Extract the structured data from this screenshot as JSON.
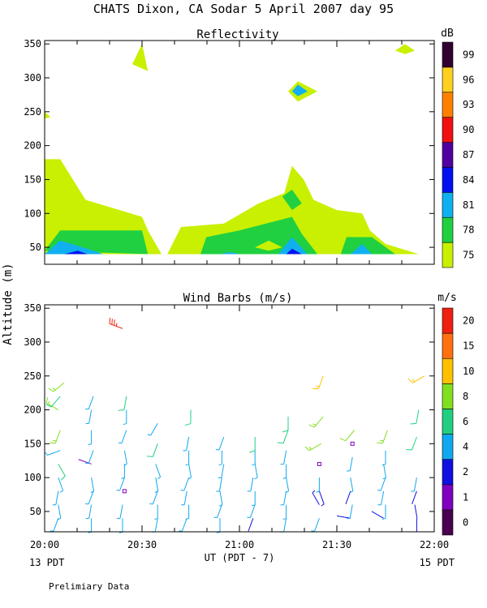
{
  "figure": {
    "title": "CHATS Dixon, CA  Sodar   5 April 2007  day  95",
    "ylabel": "Altitude (m)",
    "xlabel": "UT  (PDT - 7)",
    "left_note": "13 PDT",
    "right_note": "15 PDT",
    "footer": "Prelimiary Data"
  },
  "chart_data": [
    {
      "type": "heatmap",
      "title": "Reflectivity",
      "ylim": [
        25,
        355
      ],
      "yticks": [
        50,
        100,
        150,
        200,
        250,
        300,
        350
      ],
      "xlim_hours": [
        20,
        22
      ],
      "colorbar": {
        "unit": "dB",
        "levels": [
          75,
          78,
          81,
          84,
          87,
          90,
          93,
          96,
          99
        ],
        "colors": [
          "#c8f000",
          "#20d040",
          "#10b0f0",
          "#0010f0",
          "#5000a0",
          "#f01010",
          "#ff8000",
          "#ffd020",
          "#300030"
        ]
      },
      "contours": [
        {
          "level": 75,
          "color": "#c8f000",
          "points": [
            [
              20.0,
              40
            ],
            [
              20.0,
              180
            ],
            [
              20.08,
              180
            ],
            [
              20.21,
              120
            ],
            [
              20.5,
              95
            ],
            [
              20.53,
              75
            ],
            [
              20.6,
              40
            ]
          ]
        },
        {
          "level": 75,
          "color": "#c8f000",
          "points": [
            [
              20.25,
              40
            ],
            [
              20.33,
              50
            ],
            [
              20.5,
              40
            ]
          ]
        },
        {
          "level": 75,
          "color": "#c8f000",
          "points": [
            [
              20.63,
              40
            ],
            [
              20.7,
              80
            ],
            [
              20.92,
              85
            ],
            [
              21.1,
              115
            ],
            [
              21.23,
              130
            ],
            [
              21.27,
              170
            ],
            [
              21.33,
              150
            ],
            [
              21.38,
              120
            ],
            [
              21.5,
              105
            ],
            [
              21.63,
              100
            ],
            [
              21.67,
              75
            ],
            [
              21.75,
              55
            ],
            [
              21.92,
              40
            ]
          ]
        },
        {
          "level": 75,
          "color": "#c8f000",
          "points": [
            [
              20.45,
              320
            ],
            [
              20.5,
              350
            ],
            [
              20.53,
              310
            ]
          ]
        },
        {
          "level": 75,
          "color": "#c8f000",
          "points": [
            [
              21.25,
              280
            ],
            [
              21.3,
              295
            ],
            [
              21.4,
              280
            ],
            [
              21.3,
              265
            ]
          ]
        },
        {
          "level": 75,
          "color": "#c8f000",
          "points": [
            [
              21.8,
              340
            ],
            [
              21.85,
              350
            ],
            [
              21.9,
              340
            ],
            [
              21.85,
              335
            ]
          ]
        },
        {
          "level": 75,
          "color": "#c8f000",
          "points": [
            [
              20.0,
              240
            ],
            [
              20.03,
              242
            ],
            [
              20.0,
              250
            ]
          ]
        },
        {
          "level": 78,
          "color": "#20d040",
          "points": [
            [
              20.0,
              45
            ],
            [
              20.08,
              75
            ],
            [
              20.5,
              75
            ],
            [
              20.53,
              40
            ]
          ]
        },
        {
          "level": 78,
          "color": "#20d040",
          "points": [
            [
              20.8,
              40
            ],
            [
              20.83,
              65
            ],
            [
              21.0,
              75
            ],
            [
              21.27,
              95
            ],
            [
              21.32,
              70
            ],
            [
              21.4,
              40
            ]
          ]
        },
        {
          "level": 78,
          "color": "#20d040",
          "points": [
            [
              21.22,
              125
            ],
            [
              21.27,
              135
            ],
            [
              21.32,
              115
            ],
            [
              21.27,
              105
            ]
          ]
        },
        {
          "level": 78,
          "color": "#20d040",
          "points": [
            [
              21.52,
              40
            ],
            [
              21.55,
              65
            ],
            [
              21.68,
              65
            ],
            [
              21.8,
              40
            ]
          ]
        },
        {
          "level": 75,
          "color": "#c8f000",
          "points": [
            [
              21.08,
              50
            ],
            [
              21.15,
              60
            ],
            [
              21.22,
              50
            ],
            [
              21.15,
              45
            ]
          ]
        },
        {
          "level": 81,
          "color": "#10b0f0",
          "points": [
            [
              20.0,
              40
            ],
            [
              20.08,
              60
            ],
            [
              20.25,
              45
            ],
            [
              20.3,
              40
            ]
          ]
        },
        {
          "level": 81,
          "color": "#10b0f0",
          "points": [
            [
              21.2,
              40
            ],
            [
              21.27,
              65
            ],
            [
              21.35,
              40
            ]
          ]
        },
        {
          "level": 81,
          "color": "#10b0f0",
          "points": [
            [
              21.57,
              40
            ],
            [
              21.63,
              55
            ],
            [
              21.68,
              40
            ]
          ]
        },
        {
          "level": 81,
          "color": "#10b0f0",
          "points": [
            [
              21.27,
              280
            ],
            [
              21.3,
              290
            ],
            [
              21.35,
              280
            ],
            [
              21.3,
              273
            ]
          ]
        },
        {
          "level": 81,
          "color": "#10b0f0",
          "points": [
            [
              20.9,
              40
            ],
            [
              20.95,
              43
            ],
            [
              21.0,
              40
            ]
          ]
        },
        {
          "level": 84,
          "color": "#0010f0",
          "points": [
            [
              20.1,
              40
            ],
            [
              20.17,
              45
            ],
            [
              20.22,
              40
            ]
          ]
        },
        {
          "level": 84,
          "color": "#0010f0",
          "points": [
            [
              21.24,
              40
            ],
            [
              21.27,
              48
            ],
            [
              21.32,
              40
            ]
          ]
        }
      ]
    },
    {
      "type": "scatter",
      "title": "Wind Barbs (m/s)",
      "ylim": [
        20,
        355
      ],
      "yticks": [
        50,
        100,
        150,
        200,
        250,
        300,
        350
      ],
      "xlim_hours": [
        20,
        22
      ],
      "xticks": [
        "20:00",
        "20:30",
        "21:00",
        "21:30",
        "22:00"
      ],
      "colorbar": {
        "unit": "m/s",
        "levels": [
          0,
          1,
          2,
          4,
          6,
          8,
          10,
          15,
          20
        ],
        "colors": [
          "#4a0050",
          "#8000c0",
          "#1010e0",
          "#10a8f0",
          "#20d080",
          "#80e020",
          "#ffc000",
          "#ff7010",
          "#f02010"
        ]
      },
      "barb_color_by_speed": [
        {
          "min": 0,
          "color": "#4a0050"
        },
        {
          "min": 1,
          "color": "#8000c0"
        },
        {
          "min": 2,
          "color": "#1010e0"
        },
        {
          "min": 3,
          "color": "#10a8f0"
        },
        {
          "min": 5,
          "color": "#20d080"
        },
        {
          "min": 7,
          "color": "#80e020"
        },
        {
          "min": 9,
          "color": "#ffc000"
        },
        {
          "min": 12,
          "color": "#ff7010"
        },
        {
          "min": 18,
          "color": "#f02010"
        }
      ],
      "barb_columns_hours": [
        20.08,
        20.25,
        20.42,
        20.58,
        20.75,
        20.92,
        21.08,
        21.25,
        21.42,
        21.58,
        21.75,
        21.92
      ],
      "barb_altitudes": [
        40,
        60,
        80,
        100,
        120,
        140,
        160,
        180,
        200,
        220,
        240
      ],
      "barbs": [
        [
          20.07,
          40,
          3.5,
          200
        ],
        [
          20.07,
          60,
          3.5,
          170
        ],
        [
          20.07,
          80,
          3.0,
          190
        ],
        [
          20.07,
          100,
          4.0,
          160
        ],
        [
          20.07,
          120,
          5.0,
          150
        ],
        [
          20.08,
          140,
          3.8,
          250
        ],
        [
          20.08,
          170,
          7.5,
          200
        ],
        [
          20.07,
          200,
          8.0,
          300
        ],
        [
          20.08,
          220,
          6.0,
          220
        ],
        [
          20.1,
          240,
          8.5,
          230
        ],
        [
          20.24,
          40,
          3.5,
          180
        ],
        [
          20.24,
          60,
          4.0,
          190
        ],
        [
          20.25,
          80,
          3.5,
          200
        ],
        [
          20.24,
          100,
          3.0,
          170
        ],
        [
          20.24,
          120,
          1.8,
          290
        ],
        [
          20.25,
          140,
          3.5,
          200
        ],
        [
          20.24,
          170,
          3.5,
          180
        ],
        [
          20.24,
          200,
          3.2,
          190
        ],
        [
          20.25,
          220,
          4.0,
          200
        ],
        [
          20.4,
          40,
          4.0,
          180
        ],
        [
          20.4,
          60,
          3.5,
          190
        ],
        [
          20.41,
          80,
          1.0,
          0
        ],
        [
          20.41,
          100,
          3.5,
          200
        ],
        [
          20.41,
          120,
          3.5,
          180
        ],
        [
          20.41,
          140,
          4.0,
          170
        ],
        [
          20.42,
          170,
          3.8,
          200
        ],
        [
          20.42,
          200,
          4.0,
          180
        ],
        [
          20.42,
          220,
          6.0,
          190
        ],
        [
          20.4,
          320,
          18.0,
          290
        ],
        [
          20.58,
          40,
          3.2,
          190
        ],
        [
          20.58,
          60,
          4.0,
          180
        ],
        [
          20.58,
          80,
          3.5,
          200
        ],
        [
          20.57,
          100,
          3.5,
          170
        ],
        [
          20.57,
          120,
          4.5,
          160
        ],
        [
          20.58,
          150,
          5.5,
          200
        ],
        [
          20.58,
          180,
          3.5,
          210
        ],
        [
          20.73,
          40,
          4.0,
          200
        ],
        [
          20.74,
          60,
          3.5,
          180
        ],
        [
          20.73,
          80,
          3.5,
          190
        ],
        [
          20.74,
          100,
          3.0,
          200
        ],
        [
          20.74,
          120,
          3.5,
          170
        ],
        [
          20.74,
          140,
          3.5,
          180
        ],
        [
          20.74,
          160,
          4.0,
          190
        ],
        [
          20.75,
          200,
          6.5,
          180
        ],
        [
          20.9,
          40,
          4.0,
          180
        ],
        [
          20.91,
          60,
          3.0,
          200
        ],
        [
          20.9,
          80,
          3.5,
          170
        ],
        [
          20.91,
          100,
          3.5,
          190
        ],
        [
          20.92,
          120,
          3.2,
          190
        ],
        [
          20.91,
          140,
          4.0,
          180
        ],
        [
          20.92,
          160,
          3.8,
          200
        ],
        [
          21.07,
          40,
          2.0,
          200
        ],
        [
          21.08,
          60,
          3.5,
          200
        ],
        [
          21.08,
          80,
          3.0,
          180
        ],
        [
          21.07,
          100,
          3.5,
          190
        ],
        [
          21.08,
          120,
          4.0,
          170
        ],
        [
          21.08,
          140,
          3.5,
          180
        ],
        [
          21.08,
          160,
          5.0,
          180
        ],
        [
          21.24,
          40,
          3.5,
          190
        ],
        [
          21.24,
          60,
          4.0,
          180
        ],
        [
          21.24,
          80,
          4.0,
          190
        ],
        [
          21.24,
          100,
          3.5,
          170
        ],
        [
          21.24,
          120,
          3.5,
          180
        ],
        [
          21.24,
          140,
          4.0,
          190
        ],
        [
          21.25,
          170,
          5.5,
          200
        ],
        [
          21.25,
          190,
          5.5,
          180
        ],
        [
          21.41,
          40,
          3.5,
          200
        ],
        [
          21.41,
          60,
          2.5,
          330
        ],
        [
          21.41,
          80,
          2.5,
          160
        ],
        [
          21.41,
          100,
          3.5,
          180
        ],
        [
          21.41,
          120,
          1.0,
          0
        ],
        [
          21.42,
          150,
          8.5,
          240
        ],
        [
          21.43,
          190,
          8.5,
          220
        ],
        [
          21.43,
          250,
          9.5,
          200
        ],
        [
          21.57,
          40,
          2.0,
          280
        ],
        [
          21.58,
          60,
          3.5,
          190
        ],
        [
          21.57,
          80,
          2.2,
          200
        ],
        [
          21.57,
          100,
          3.0,
          170
        ],
        [
          21.58,
          130,
          4.0,
          190
        ],
        [
          21.58,
          150,
          1.0,
          0
        ],
        [
          21.59,
          170,
          7.0,
          220
        ],
        [
          21.74,
          40,
          2.0,
          300
        ],
        [
          21.75,
          60,
          3.5,
          180
        ],
        [
          21.74,
          80,
          4.0,
          190
        ],
        [
          21.75,
          100,
          3.5,
          200
        ],
        [
          21.74,
          120,
          3.8,
          170
        ],
        [
          21.75,
          140,
          4.5,
          180
        ],
        [
          21.76,
          170,
          8.0,
          200
        ],
        [
          21.91,
          40,
          2.0,
          180
        ],
        [
          21.9,
          60,
          2.0,
          170
        ],
        [
          21.91,
          80,
          2.0,
          200
        ],
        [
          21.91,
          100,
          3.5,
          190
        ],
        [
          21.91,
          160,
          6.0,
          200
        ],
        [
          21.92,
          200,
          6.5,
          190
        ],
        [
          21.95,
          250,
          9.0,
          240
        ]
      ]
    }
  ]
}
